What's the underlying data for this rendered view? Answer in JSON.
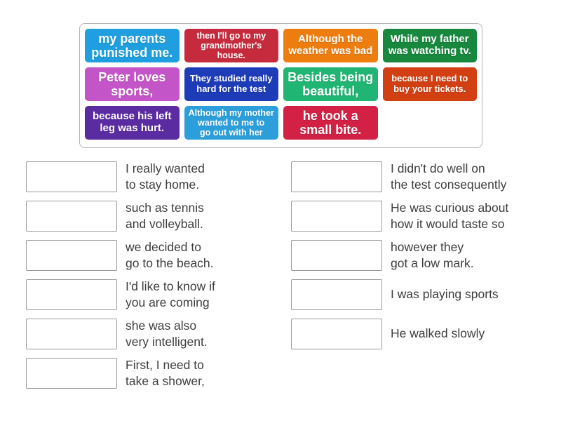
{
  "word_bank": {
    "tiles": [
      {
        "text": "my parents\npunished me.",
        "color": "#1f9fe0"
      },
      {
        "text": "then I'll go to my\ngrandmother's\nhouse.",
        "color": "#c62b3d"
      },
      {
        "text": "Although the\nweather was bad",
        "color": "#ee7d10"
      },
      {
        "text": "While my father\nwas watching tv.",
        "color": "#18883f"
      },
      {
        "text": "Peter loves\nsports,",
        "color": "#c455c8"
      },
      {
        "text": "They studied really\nhard for the test",
        "color": "#1e3cb8"
      },
      {
        "text": "Besides being\nbeautiful,",
        "color": "#21b573"
      },
      {
        "text": "because I need to\nbuy your tickets.",
        "color": "#d23f12"
      },
      {
        "text": "because his left\nleg was hurt.",
        "color": "#5b2ba2"
      },
      {
        "text": "Although my mother\nwanted to me to\ngo out with her",
        "color": "#2c9fdb"
      },
      {
        "text": "he took a\nsmall bite.",
        "color": "#d32045"
      }
    ]
  },
  "matches": {
    "left": [
      {
        "clue": "I really wanted\nto stay home."
      },
      {
        "clue": "such as tennis\nand volleyball."
      },
      {
        "clue": "we decided to\ngo to the beach."
      },
      {
        "clue": "I'd like to know if\nyou are coming"
      },
      {
        "clue": "she was also\nvery intelligent."
      },
      {
        "clue": "First, I need to\ntake a shower,"
      }
    ],
    "right": [
      {
        "clue": "I didn't do well on\nthe test consequently"
      },
      {
        "clue": "He was curious about\nhow it would taste so"
      },
      {
        "clue": "however they\ngot a low mark."
      },
      {
        "clue": "I was playing sports"
      },
      {
        "clue": "He walked slowly"
      }
    ]
  }
}
